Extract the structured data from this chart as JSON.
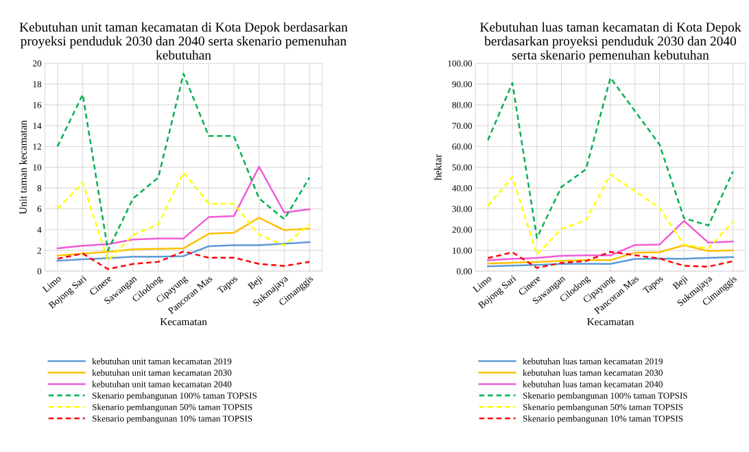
{
  "chart_data": [
    {
      "type": "line",
      "title": "Kebutuhan unit taman kecamatan di Kota Depok berdasarkan proyeksi penduduk 2030 dan 2040 serta skenario pemenuhan kebutuhan",
      "xlabel": "Kecamatan",
      "ylabel": "Unit taman kecamatan",
      "categories": [
        "Limo",
        "Bojong Sari",
        "Cinere",
        "Sawangan",
        "Cilodong",
        "Cipayung",
        "Pancoran Mas",
        "Tapos",
        "Beji",
        "Sukmajaya",
        "Cimanggis"
      ],
      "ylim": [
        0,
        20
      ],
      "yticks": [
        0,
        2,
        4,
        6,
        8,
        10,
        12,
        14,
        16,
        18,
        20
      ],
      "grid": true,
      "legend": "bottom",
      "marker": "none",
      "series": [
        {
          "name": "kebutuhan unit taman kecamatan 2019",
          "color": "#5b9bd5",
          "line_style": "solid",
          "values": [
            1.0,
            1.15,
            1.25,
            1.4,
            1.4,
            1.45,
            2.4,
            2.5,
            2.5,
            2.65,
            2.8
          ]
        },
        {
          "name": "kebutuhan unit taman kecamatan 2030",
          "color": "#ffc000",
          "line_style": "solid",
          "values": [
            1.5,
            1.7,
            1.85,
            2.1,
            2.15,
            2.2,
            3.6,
            3.7,
            5.15,
            3.95,
            4.1
          ]
        },
        {
          "name": "kebutuhan unit taman kecamatan 2040",
          "color": "#f15bd6",
          "line_style": "solid",
          "values": [
            2.2,
            2.45,
            2.6,
            3.05,
            3.15,
            3.15,
            5.2,
            5.3,
            10.05,
            5.65,
            5.95
          ]
        },
        {
          "name": "Skenario pembangunan 100% taman TOPSIS",
          "color": "#00b050",
          "line_style": "dashed",
          "values": [
            12,
            17,
            2,
            7,
            9,
            19,
            13,
            13,
            7,
            5,
            9
          ]
        },
        {
          "name": "Skenario pembangunan 50% taman TOPSIS",
          "color": "#ffff00",
          "line_style": "dashed",
          "values": [
            6,
            8.5,
            1,
            3.5,
            4.5,
            9.5,
            6.5,
            6.5,
            3.5,
            2.5,
            4.5
          ]
        },
        {
          "name": "Skenario pembangunan 10% taman TOPSIS",
          "color": "#ff0000",
          "line_style": "dashed",
          "values": [
            1.2,
            1.7,
            0.2,
            0.7,
            0.9,
            1.9,
            1.3,
            1.3,
            0.7,
            0.5,
            0.9
          ]
        }
      ]
    },
    {
      "type": "line",
      "title": "Kebutuhan luas taman kecamatan di Kota Depok berdasarkan proyeksi penduduk 2030 dan 2040 serta skenario pemenuhan kebutuhan",
      "xlabel": "Kecamatan",
      "ylabel": "hektar",
      "categories": [
        "Limo",
        "Bojong Sari",
        "Cinere",
        "Sawangan",
        "Cilodong",
        "Cipayung",
        "Pancoran Mas",
        "Tapos",
        "Beji",
        "Sukmajaya",
        "Cimanggis"
      ],
      "ylim": [
        0,
        100
      ],
      "yticks": [
        {
          "value": 0,
          "label": "0.00"
        },
        {
          "value": 10,
          "label": "10.00"
        },
        {
          "value": 20,
          "label": "20.00"
        },
        {
          "value": 30,
          "label": "30.00"
        },
        {
          "value": 40,
          "label": "40.00"
        },
        {
          "value": 50,
          "label": "50.00"
        },
        {
          "value": 60,
          "label": "60.00"
        },
        {
          "value": 70,
          "label": "70.00"
        },
        {
          "value": 80,
          "label": "80.00"
        },
        {
          "value": 90,
          "label": "90.00"
        },
        {
          "value": 100,
          "label": "100.00"
        }
      ],
      "grid": true,
      "legend": "bottom",
      "marker": "none",
      "series": [
        {
          "name": "kebutuhan luas taman kecamatan 2019",
          "color": "#5b9bd5",
          "line_style": "solid",
          "values": [
            2.4,
            2.7,
            3.0,
            3.5,
            3.6,
            3.5,
            5.9,
            6.1,
            6.0,
            6.4,
            6.8
          ]
        },
        {
          "name": "kebutuhan luas taman kecamatan 2030",
          "color": "#ffc000",
          "line_style": "solid",
          "values": [
            3.7,
            4.1,
            4.4,
            5.0,
            5.3,
            5.3,
            8.9,
            9.1,
            12.5,
            9.7,
            10.0
          ]
        },
        {
          "name": "kebutuhan luas taman kecamatan 2040",
          "color": "#f15bd6",
          "line_style": "solid",
          "values": [
            5.3,
            5.9,
            6.4,
            7.4,
            7.6,
            7.6,
            12.6,
            12.8,
            24.2,
            13.7,
            14.3
          ]
        },
        {
          "name": "Skenario pembangunan 100% taman TOPSIS",
          "color": "#00b050",
          "line_style": "dashed",
          "values": [
            63,
            90.5,
            16,
            40.5,
            49,
            93,
            77,
            61,
            25.5,
            22,
            48
          ]
        },
        {
          "name": "Skenario pembangunan 50% taman TOPSIS",
          "color": "#ffff00",
          "line_style": "dashed",
          "values": [
            31.5,
            45.3,
            8,
            20.3,
            24.5,
            46.5,
            38.5,
            30.5,
            12.8,
            11,
            24
          ]
        },
        {
          "name": "Skenario pembangunan 10% taman TOPSIS",
          "color": "#ff0000",
          "line_style": "dashed",
          "values": [
            6.3,
            9.1,
            1.6,
            4.0,
            4.9,
            9.3,
            7.7,
            6.1,
            2.6,
            2.2,
            4.8
          ]
        }
      ]
    }
  ]
}
